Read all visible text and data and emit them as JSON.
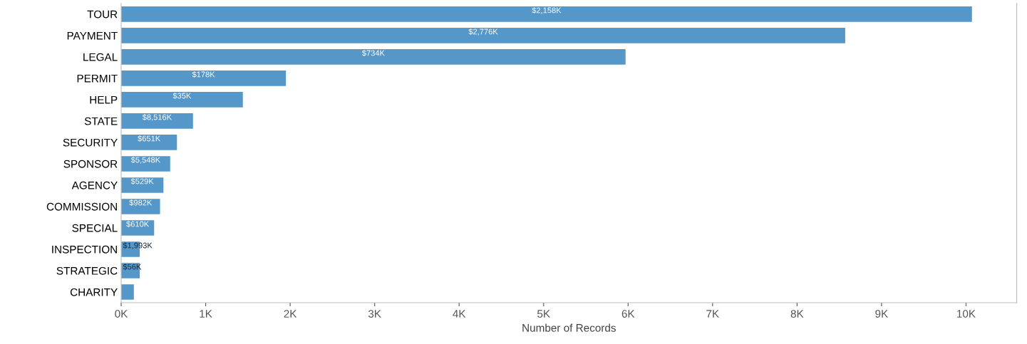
{
  "chart_data": {
    "type": "bar",
    "orientation": "horizontal",
    "xlabel": "Number of Records",
    "categories": [
      "TOUR",
      "PAYMENT",
      "LEGAL",
      "PERMIT",
      "HELP",
      "STATE",
      "SECURITY",
      "SPONSOR",
      "AGENCY",
      "COMMISSION",
      "SPECIAL",
      "INSPECTION",
      "STRATEGIC",
      "CHARITY"
    ],
    "values": [
      10.07,
      8.57,
      5.97,
      1.95,
      1.44,
      0.85,
      0.66,
      0.58,
      0.5,
      0.46,
      0.39,
      0.22,
      0.22,
      0.15
    ],
    "annotations": [
      {
        "text": "$2,158K",
        "y": "TOUR"
      },
      {
        "text": "$2,776K",
        "y": "PAYMENT"
      },
      {
        "text": "$734K",
        "y": "LEGAL"
      },
      {
        "text": "$178K",
        "y": "PERMIT"
      },
      {
        "text": "$35K",
        "y": "HELP"
      },
      {
        "text": "$8,516K",
        "y": "STATE"
      },
      {
        "text": "$651K",
        "y": "SECURITY"
      },
      {
        "text": "$5,548K",
        "y": "SPONSOR"
      },
      {
        "text": "$529K",
        "y": "AGENCY"
      },
      {
        "text": "$982K",
        "y": "COMMISSION"
      },
      {
        "text": "$610K",
        "y": "SPECIAL"
      },
      {
        "text": "$1,993K",
        "y": "INSPECTION"
      },
      {
        "text": "$56K",
        "y": "STRATEGIC"
      }
    ],
    "color": "#5597c8",
    "xlim": [
      0,
      10.6
    ],
    "xticks": [
      {
        "value": 0,
        "label": "0K"
      },
      {
        "value": 1,
        "label": "1K"
      },
      {
        "value": 2,
        "label": "2K"
      },
      {
        "value": 3,
        "label": "3K"
      },
      {
        "value": 4,
        "label": "4K"
      },
      {
        "value": 5,
        "label": "5K"
      },
      {
        "value": 6,
        "label": "6K"
      },
      {
        "value": 7,
        "label": "7K"
      },
      {
        "value": 8,
        "label": "8K"
      },
      {
        "value": 9,
        "label": "9K"
      },
      {
        "value": 10,
        "label": "10K"
      }
    ],
    "grid": false
  }
}
